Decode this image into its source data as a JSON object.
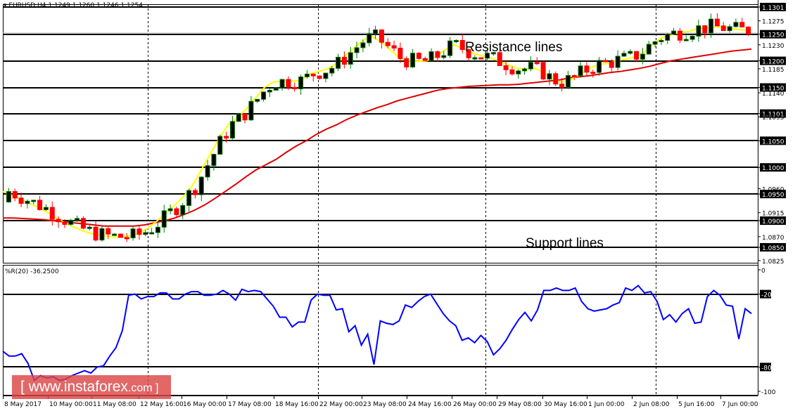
{
  "header": {
    "symbol_info": "EURUSD,H4  1.1249 1.1260 1.1246 1.1254",
    "symbol": "EURUSD",
    "timeframe": "H4",
    "open": "1.1249",
    "high": "1.1260",
    "low": "1.1246",
    "close": "1.1254"
  },
  "indicator": {
    "label": "%R(20) -36.2500",
    "name": "%R",
    "period": 20,
    "value": "-36.2500"
  },
  "annotations": {
    "resistance": "Resistance lines",
    "support": "Support lines"
  },
  "watermark": {
    "prefix": "[ www.instaforex",
    "suffix": ".com ]"
  },
  "colors": {
    "bull_border": "#007a00",
    "bull_body": "#000000",
    "bear": "#ff0000",
    "ma_fast": "#ffff00",
    "ma_slow": "#e00000",
    "wpr_line": "#0000ff",
    "hline": "#000000"
  },
  "chart_data": [
    {
      "type": "candlestick",
      "title": "EURUSD,H4",
      "ylim": [
        1.0815,
        1.131
      ],
      "price_ticks": [
        "1.1301",
        "1.1275",
        "1.1250",
        "1.1230",
        "1.1200",
        "1.1185",
        "1.1150",
        "1.1140",
        "1.1101",
        "1.1095",
        "1.1050",
        "1.1000",
        "1.0960",
        "1.0950",
        "1.0915",
        "1.0900",
        "1.0870",
        "1.0850",
        "1.0825"
      ],
      "highlighted_levels": [
        "1.1301",
        "1.1250",
        "1.1200",
        "1.1150",
        "1.1101",
        "1.1050",
        "1.1000",
        "1.0950",
        "1.0900",
        "1.0850"
      ],
      "x_labels": [
        "8 May 2017",
        "10 May 00:00",
        "11 May 08:00",
        "12 May 16:00",
        "16 May 00:00",
        "17 May 08:00",
        "18 May 16:00",
        "22 May 00:00",
        "23 May 08:00",
        "24 May 16:00",
        "26 May 00:00",
        "29 May 08:00",
        "30 May 16:00",
        "1 Jun 00:00",
        "2 Jun 08:00",
        "5 Jun 16:00",
        "7 Jun 00:00"
      ],
      "series": [
        {
          "name": "MA fast (yellow)",
          "values": [
            1.0955,
            1.0948,
            1.094,
            1.0932,
            1.0925,
            1.0915,
            1.0905,
            1.0895,
            1.0887,
            1.088,
            1.0875,
            1.0872,
            1.087,
            1.087,
            1.0871,
            1.0876,
            1.0885,
            1.0898,
            1.0913,
            1.0928,
            1.0945,
            1.0965,
            1.0995,
            1.1025,
            1.1055,
            1.108,
            1.1093,
            1.111,
            1.113,
            1.115,
            1.116,
            1.1162,
            1.1162,
            1.1163,
            1.1175,
            1.118,
            1.1185,
            1.1195,
            1.121,
            1.1225,
            1.124,
            1.1245,
            1.1235,
            1.122,
            1.1205,
            1.12,
            1.1199,
            1.12,
            1.1208,
            1.122,
            1.123,
            1.1223,
            1.1215,
            1.121,
            1.1206,
            1.12,
            1.1193,
            1.1186,
            1.1185,
            1.1186,
            1.1178,
            1.1165,
            1.116,
            1.1165,
            1.1175,
            1.1185,
            1.1193,
            1.1195,
            1.12,
            1.1203,
            1.1207,
            1.1215,
            1.123,
            1.1243,
            1.1248,
            1.1253,
            1.1255,
            1.126,
            1.1262,
            1.1264,
            1.1263,
            1.126,
            1.1258,
            1.1258
          ]
        },
        {
          "name": "MA slow (red)",
          "values": [
            1.0905,
            1.0905,
            1.0904,
            1.0903,
            1.0902,
            1.09,
            1.0898,
            1.0896,
            1.0894,
            1.0892,
            1.089,
            1.089,
            1.089,
            1.089,
            1.0892,
            1.0896,
            1.09,
            1.0905,
            1.0912,
            1.092,
            1.093,
            1.0942,
            1.0955,
            1.0968,
            1.0982,
            1.0995,
            1.1005,
            1.1015,
            1.1028,
            1.104,
            1.105,
            1.1062,
            1.1072,
            1.108,
            1.109,
            1.1098,
            1.1105,
            1.1112,
            1.1118,
            1.1125,
            1.113,
            1.1135,
            1.114,
            1.1145,
            1.1148,
            1.115,
            1.1152,
            1.1153,
            1.1154,
            1.1155,
            1.1155,
            1.1156,
            1.1158,
            1.116,
            1.1162,
            1.1164,
            1.1168,
            1.117,
            1.1172,
            1.1175,
            1.1178,
            1.118,
            1.1183,
            1.1186,
            1.119,
            1.1195,
            1.12,
            1.1203,
            1.1206,
            1.1209,
            1.1212,
            1.1215,
            1.1218,
            1.122,
            1.1222
          ]
        }
      ]
    },
    {
      "type": "line",
      "title": "%R(20) -36.2500",
      "ylim": [
        -100,
        0
      ],
      "y_ticks": [
        "0",
        "-20",
        "-80",
        "-100"
      ],
      "levels": [
        -20,
        -80
      ],
      "series": [
        {
          "name": "%R(20)",
          "values": [
            -67,
            -71,
            -71,
            -69,
            -77,
            -91,
            -87,
            -89,
            -88,
            -91,
            -90,
            -87,
            -85,
            -83,
            -85,
            -80,
            -79,
            -71,
            -64,
            -50,
            -21,
            -20,
            -24,
            -22,
            -22,
            -19,
            -19,
            -24,
            -24,
            -20,
            -18,
            -18,
            -21,
            -21,
            -20,
            -17,
            -20,
            -25,
            -16,
            -18,
            -17,
            -18,
            -24,
            -30,
            -39,
            -39,
            -47,
            -43,
            -43,
            -25,
            -20,
            -21,
            -21,
            -33,
            -32,
            -51,
            -46,
            -62,
            -53,
            -78,
            -42,
            -44,
            -45,
            -42,
            -29,
            -31,
            -26,
            -22,
            -20,
            -28,
            -36,
            -42,
            -46,
            -58,
            -56,
            -60,
            -54,
            -59,
            -70,
            -65,
            -58,
            -49,
            -41,
            -35,
            -42,
            -33,
            -17,
            -17,
            -15,
            -17,
            -17,
            -15,
            -26,
            -32,
            -34,
            -33,
            -32,
            -29,
            -27,
            -15,
            -17,
            -13,
            -19,
            -18,
            -26,
            -41,
            -37,
            -43,
            -36,
            -32,
            -44,
            -43,
            -22,
            -17,
            -21,
            -29,
            -30,
            -57,
            -32,
            -36
          ]
        }
      ]
    }
  ]
}
